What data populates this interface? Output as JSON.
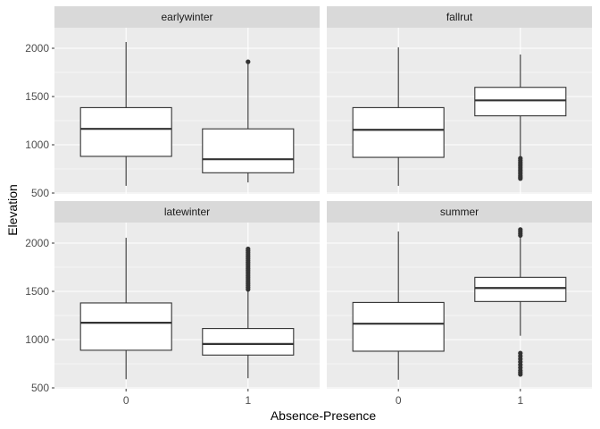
{
  "chart_data": {
    "type": "boxplot",
    "title": "",
    "xlabel": "Absence-Presence",
    "ylabel": "Elevation",
    "categories": [
      "0",
      "1"
    ],
    "y_ticks": [
      500,
      1000,
      1500,
      2000
    ],
    "ylim": [
      500,
      2200
    ],
    "grid": true,
    "facet_layout": "2x2",
    "colors": {
      "panel_bg": "#ebebeb",
      "strip_bg": "#d9d9d9",
      "grid_major": "#ffffff",
      "box_fill": "#ffffff",
      "box_line": "#333333"
    },
    "panels": [
      {
        "name": "earlywinter",
        "boxes": [
          {
            "category": "0",
            "min": 575,
            "q1": 880,
            "median": 1165,
            "q3": 1385,
            "max": 2065,
            "outliers": []
          },
          {
            "category": "1",
            "min": 610,
            "q1": 710,
            "median": 850,
            "q3": 1165,
            "max": 1840,
            "outliers": [
              1860
            ]
          }
        ]
      },
      {
        "name": "fallrut",
        "boxes": [
          {
            "category": "0",
            "min": 575,
            "q1": 870,
            "median": 1155,
            "q3": 1385,
            "max": 2010,
            "outliers": []
          },
          {
            "category": "1",
            "min": 870,
            "q1": 1300,
            "median": 1460,
            "q3": 1595,
            "max": 1935,
            "outliers": [
              860,
              840,
              820,
              800,
              780,
              760,
              740,
              720,
              700,
              680,
              665,
              650
            ]
          }
        ]
      },
      {
        "name": "latewinter",
        "boxes": [
          {
            "category": "0",
            "min": 590,
            "q1": 890,
            "median": 1175,
            "q3": 1380,
            "max": 2055,
            "outliers": []
          },
          {
            "category": "1",
            "min": 600,
            "q1": 840,
            "median": 955,
            "q3": 1115,
            "max": 1500,
            "outliers": [
              1520,
              1540,
              1560,
              1580,
              1600,
              1620,
              1640,
              1660,
              1680,
              1700,
              1720,
              1740,
              1760,
              1780,
              1800,
              1820,
              1840,
              1860,
              1880,
              1900,
              1920,
              1940
            ]
          }
        ]
      },
      {
        "name": "summer",
        "boxes": [
          {
            "category": "0",
            "min": 585,
            "q1": 880,
            "median": 1165,
            "q3": 1385,
            "max": 2120,
            "outliers": []
          },
          {
            "category": "1",
            "min": 1040,
            "q1": 1395,
            "median": 1535,
            "q3": 1645,
            "max": 2060,
            "outliers": [
              2080,
              2100,
              2120,
              2140,
              860,
              830,
              800,
              770,
              740,
              710,
              680,
              660,
              640
            ]
          }
        ]
      }
    ]
  }
}
